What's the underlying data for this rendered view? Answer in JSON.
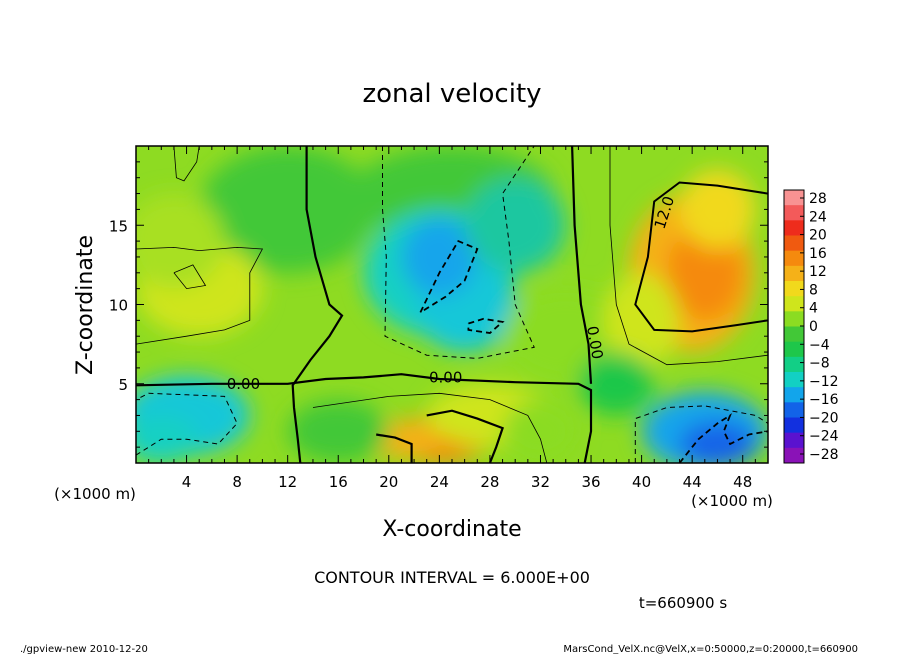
{
  "chart_data": {
    "type": "heatmap",
    "title": "zonal velocity",
    "xlabel": "X-coordinate",
    "ylabel": "Z-coordinate",
    "x_unit": "(×1000 m)",
    "y_unit": "(×1000 m)",
    "xlim": [
      0,
      50
    ],
    "ylim": [
      0,
      20
    ],
    "x_ticks": [
      "4",
      "8",
      "12",
      "16",
      "20",
      "24",
      "28",
      "32",
      "36",
      "40",
      "44",
      "48"
    ],
    "y_ticks": [
      "5",
      "10",
      "15"
    ],
    "colorbar": {
      "labels": [
        "28",
        "24",
        "20",
        "16",
        "12",
        "8",
        "4",
        "0",
        "−4",
        "−8",
        "−12",
        "−16",
        "−20",
        "−24",
        "−28"
      ],
      "colors": [
        "#f89292",
        "#f35a5a",
        "#ee2c1c",
        "#f05a10",
        "#f58a0e",
        "#f5b118",
        "#f1d91c",
        "#cfe51c",
        "#8bdc22",
        "#42c837",
        "#1ec74a",
        "#12cf86",
        "#12d0c3",
        "#12a5eb",
        "#1263e8",
        "#1230df",
        "#5a12cf",
        "#8a12b7"
      ]
    },
    "contour_labels": [
      "0.00",
      "0.00",
      "0.00",
      "12.0"
    ],
    "contour_interval_text": "CONTOUR INTERVAL = 6.000E+00",
    "time_label": "t=660900 s",
    "grid": false
  },
  "footer": {
    "left": "./gpview-new  2010-12-20",
    "right": "MarsCond_VelX.nc@VelX,x=0:50000,z=0:20000,t=660900"
  }
}
